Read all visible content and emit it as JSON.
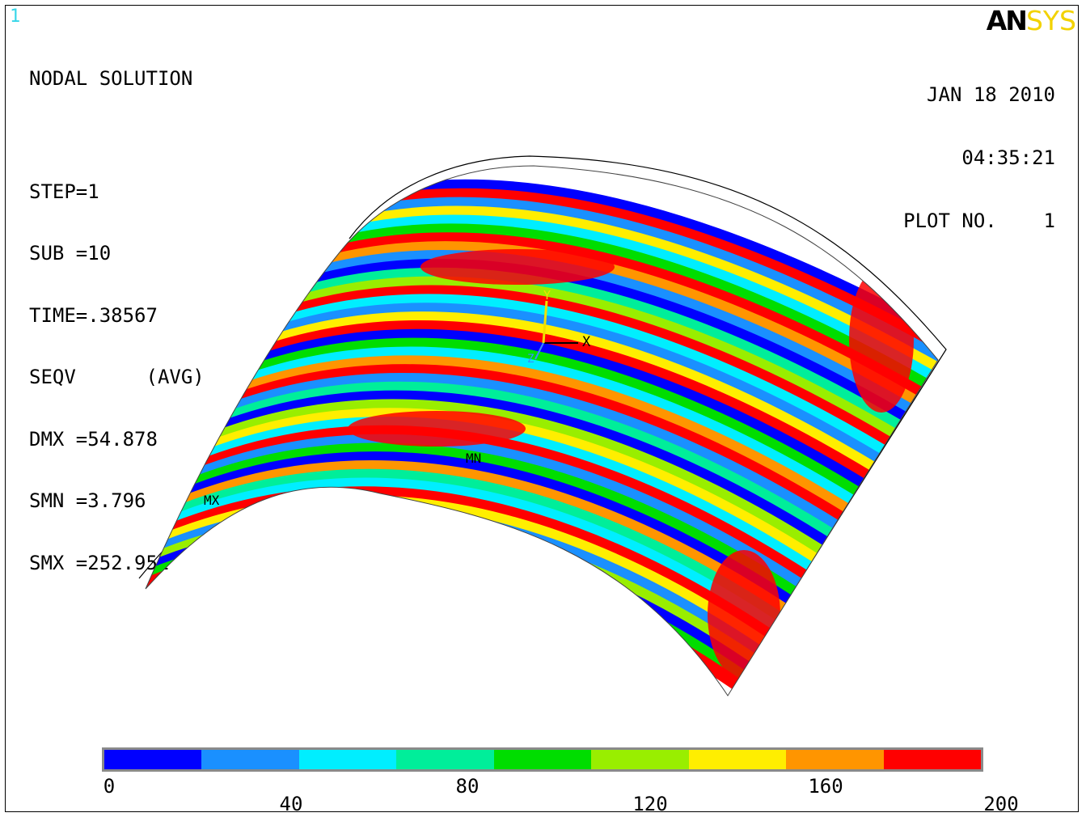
{
  "window_number": "1",
  "info": {
    "title": "NODAL SOLUTION",
    "step": "STEP=1",
    "sub": "SUB =10",
    "time": "TIME=.38567",
    "seqv": "SEQV      (AVG)",
    "dmx": "DMX =54.878",
    "smn": "SMN =3.796",
    "smx": "SMX =252.952"
  },
  "logo": {
    "an": "AN",
    "sys": "SYS"
  },
  "datetime": {
    "date": "JAN 18 2010",
    "time": "04:35:21",
    "plot_no": "PLOT NO.    1"
  },
  "markers": {
    "mx": "MX",
    "mn": "MN",
    "axis_x": "X",
    "axis_y": "Y",
    "axis_z": "Z"
  },
  "legend": {
    "colors": [
      "#0000ff",
      "#1a90ff",
      "#00eeff",
      "#00ee9a",
      "#00dd00",
      "#99ee00",
      "#ffee00",
      "#ff9500",
      "#ff0000"
    ],
    "top_labels": [
      "0",
      "80",
      "160"
    ],
    "bottom_labels": [
      "40",
      "120",
      "200"
    ]
  },
  "stress_palette": [
    "#0000ff",
    "#1a90ff",
    "#00eeff",
    "#00ee9a",
    "#00dd00",
    "#99ee00",
    "#ffee00",
    "#ff9500",
    "#ff0000"
  ]
}
